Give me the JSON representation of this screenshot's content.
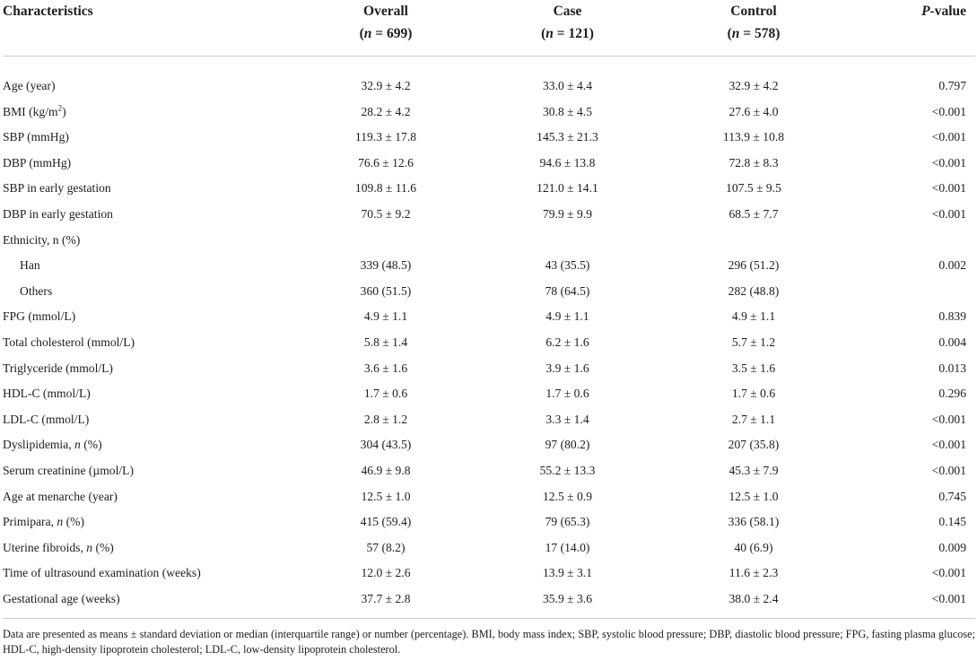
{
  "table": {
    "header": {
      "characteristics": "Characteristics",
      "columns": [
        {
          "title": "Overall",
          "n_open": "(",
          "n_char": "n",
          "n_rest": " = 699)"
        },
        {
          "title": "Case",
          "n_open": "(",
          "n_char": "n",
          "n_rest": " = 121)"
        },
        {
          "title": "Control",
          "n_open": "(",
          "n_char": "n",
          "n_rest": " = 578)"
        }
      ],
      "p_italic": "P",
      "p_rest": "-value"
    },
    "rows": [
      {
        "label": [
          {
            "t": "Age (year)"
          }
        ],
        "overall": "32.9 ± 4.2",
        "case": "33.0 ± 4.4",
        "control": "32.9 ± 4.2",
        "p": "0.797"
      },
      {
        "label": [
          {
            "t": "BMI (kg/m"
          },
          {
            "t": "2",
            "style": "sup"
          },
          {
            "t": ")"
          }
        ],
        "overall": "28.2 ± 4.2",
        "case": "30.8 ± 4.5",
        "control": "27.6 ± 4.0",
        "p": "<0.001"
      },
      {
        "label": [
          {
            "t": "SBP (mmHg)"
          }
        ],
        "overall": "119.3 ± 17.8",
        "case": "145.3 ± 21.3",
        "control": "113.9 ± 10.8",
        "p": "<0.001"
      },
      {
        "label": [
          {
            "t": "DBP (mmHg)"
          }
        ],
        "overall": "76.6 ± 12.6",
        "case": "94.6 ± 13.8",
        "control": "72.8 ± 8.3",
        "p": "<0.001"
      },
      {
        "label": [
          {
            "t": "SBP in early gestation"
          }
        ],
        "overall": "109.8 ± 11.6",
        "case": "121.0 ± 14.1",
        "control": "107.5 ± 9.5",
        "p": "<0.001"
      },
      {
        "label": [
          {
            "t": "DBP in early gestation"
          }
        ],
        "overall": "70.5 ± 9.2",
        "case": "79.9 ± 9.9",
        "control": "68.5 ± 7.7",
        "p": "<0.001"
      },
      {
        "label": [
          {
            "t": "Ethnicity, n (%)"
          }
        ],
        "overall": "",
        "case": "",
        "control": "",
        "p": ""
      },
      {
        "label": [
          {
            "t": "Han"
          }
        ],
        "indent": true,
        "overall": "339 (48.5)",
        "case": "43 (35.5)",
        "control": "296 (51.2)",
        "p": "0.002"
      },
      {
        "label": [
          {
            "t": "Others"
          }
        ],
        "indent": true,
        "overall": "360 (51.5)",
        "case": "78 (64.5)",
        "control": "282 (48.8)",
        "p": ""
      },
      {
        "label": [
          {
            "t": "FPG (mmol/L)"
          }
        ],
        "overall": "4.9 ± 1.1",
        "case": "4.9 ± 1.1",
        "control": "4.9 ± 1.1",
        "p": "0.839"
      },
      {
        "label": [
          {
            "t": "Total cholesterol (mmol/L)"
          }
        ],
        "overall": "5.8 ± 1.4",
        "case": "6.2 ± 1.6",
        "control": "5.7 ± 1.2",
        "p": "0.004"
      },
      {
        "label": [
          {
            "t": "Triglyceride (mmol/L)"
          }
        ],
        "overall": "3.6 ± 1.6",
        "case": "3.9 ± 1.6",
        "control": "3.5 ± 1.6",
        "p": "0.013"
      },
      {
        "label": [
          {
            "t": "HDL-C (mmol/L)"
          }
        ],
        "overall": "1.7 ± 0.6",
        "case": "1.7 ± 0.6",
        "control": "1.7 ± 0.6",
        "p": "0.296"
      },
      {
        "label": [
          {
            "t": "LDL-C (mmol/L)"
          }
        ],
        "overall": "2.8 ± 1.2",
        "case": "3.3 ± 1.4",
        "control": "2.7 ± 1.1",
        "p": "<0.001"
      },
      {
        "label": [
          {
            "t": "Dyslipidemia, "
          },
          {
            "t": "n",
            "style": "italic"
          },
          {
            "t": " (%)"
          }
        ],
        "overall": "304 (43.5)",
        "case": "97 (80.2)",
        "control": "207 (35.8)",
        "p": "<0.001"
      },
      {
        "label": [
          {
            "t": "Serum creatinine (µmol/L)"
          }
        ],
        "overall": "46.9 ± 9.8",
        "case": "55.2 ± 13.3",
        "control": "45.3 ± 7.9",
        "p": "<0.001"
      },
      {
        "label": [
          {
            "t": "Age at menarche (year)"
          }
        ],
        "overall": "12.5 ± 1.0",
        "case": "12.5 ± 0.9",
        "control": "12.5 ± 1.0",
        "p": "0.745"
      },
      {
        "label": [
          {
            "t": "Primipara, "
          },
          {
            "t": "n",
            "style": "italic"
          },
          {
            "t": " (%)"
          }
        ],
        "overall": "415 (59.4)",
        "case": "79 (65.3)",
        "control": "336 (58.1)",
        "p": "0.145"
      },
      {
        "label": [
          {
            "t": "Uterine fibroids, "
          },
          {
            "t": "n",
            "style": "italic"
          },
          {
            "t": " (%)"
          }
        ],
        "overall": "57 (8.2)",
        "case": "17 (14.0)",
        "control": "40 (6.9)",
        "p": "0.009"
      },
      {
        "label": [
          {
            "t": "Time of ultrasound examination (weeks)"
          }
        ],
        "overall": "12.0 ± 2.6",
        "case": "13.9 ± 3.1",
        "control": "11.6 ± 2.3",
        "p": "<0.001"
      },
      {
        "label": [
          {
            "t": "Gestational age (weeks)"
          }
        ],
        "overall": "37.7 ± 2.8",
        "case": "35.9 ± 3.6",
        "control": "38.0 ± 2.4",
        "p": "<0.001"
      }
    ],
    "footnote": "Data are presented as means ± standard deviation or median (interquartile range) or number (percentage). BMI, body mass index; SBP, systolic blood pressure; DBP, diastolic blood pressure; FPG, fasting plasma glucose; HDL-C, high-density lipoprotein cholesterol; LDL-C, low-density lipoprotein cholesterol."
  },
  "colors": {
    "text": "#1d1d1d",
    "rule": "#cfcfcf",
    "background": "#ffffff"
  }
}
